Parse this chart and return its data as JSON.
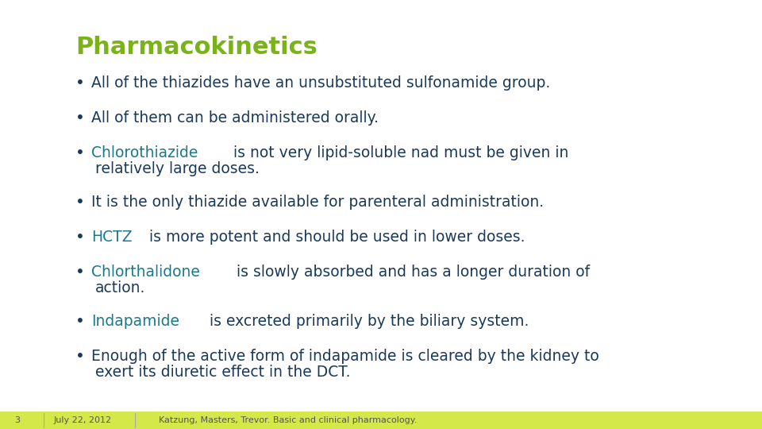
{
  "title": "Pharmacokinetics",
  "title_color": "#7ab317",
  "background_color": "#ffffff",
  "footer_color": "#d4e84a",
  "footer_text": "Katzung, Masters, Trevor. Basic and clinical pharmacology.",
  "footer_date": "July 22, 2012",
  "footer_page": "3",
  "text_color": "#1a3a5c",
  "bullet_color": "#1a3a5c",
  "highlight_color": "#1a7a8c",
  "bullets": [
    {
      "parts": [
        {
          "text": "All of the thiazides have an unsubstituted sulfonamide group.",
          "color": "#1a3a5c",
          "bold": false
        }
      ],
      "indent": 0
    },
    {
      "parts": [
        {
          "text": "All of them can be administered orally.",
          "color": "#1a3a5c",
          "bold": false
        }
      ],
      "indent": 0
    },
    {
      "parts": [
        {
          "text": "Chlorothiazide",
          "color": "#1a7a8c",
          "bold": false
        },
        {
          "text": " is not very lipid-soluble nad must be given in relatively large doses.",
          "color": "#1a3a5c",
          "bold": false
        }
      ],
      "indent": 0
    },
    {
      "parts": [
        {
          "text": "It is the only thiazide available for parenteral administration.",
          "color": "#1a3a5c",
          "bold": false
        }
      ],
      "indent": 0
    },
    {
      "parts": [
        {
          "text": "HCTZ",
          "color": "#1a7a8c",
          "bold": false
        },
        {
          "text": " is more potent and should be used in lower doses.",
          "color": "#1a3a5c",
          "bold": false
        }
      ],
      "indent": 0
    },
    {
      "parts": [
        {
          "text": "Chlorthalidone",
          "color": "#1a7a8c",
          "bold": false
        },
        {
          "text": " is slowly absorbed and has a longer duration of action.",
          "color": "#1a3a5c",
          "bold": false
        }
      ],
      "indent": 0
    },
    {
      "parts": [
        {
          "text": "Indapamide",
          "color": "#1a7a8c",
          "bold": false
        },
        {
          "text": " is excreted primarily by the biliary system.",
          "color": "#1a3a5c",
          "bold": false
        }
      ],
      "indent": 0
    },
    {
      "parts": [
        {
          "text": "Enough of the active form of indapamide is cleared by the kidney to exert its diuretic effect in the DCT.",
          "color": "#1a3a5c",
          "bold": false
        }
      ],
      "indent": 0
    }
  ],
  "font_family": "DejaVu Sans",
  "title_fontsize": 22,
  "body_fontsize": 13.5,
  "footer_fontsize": 8
}
